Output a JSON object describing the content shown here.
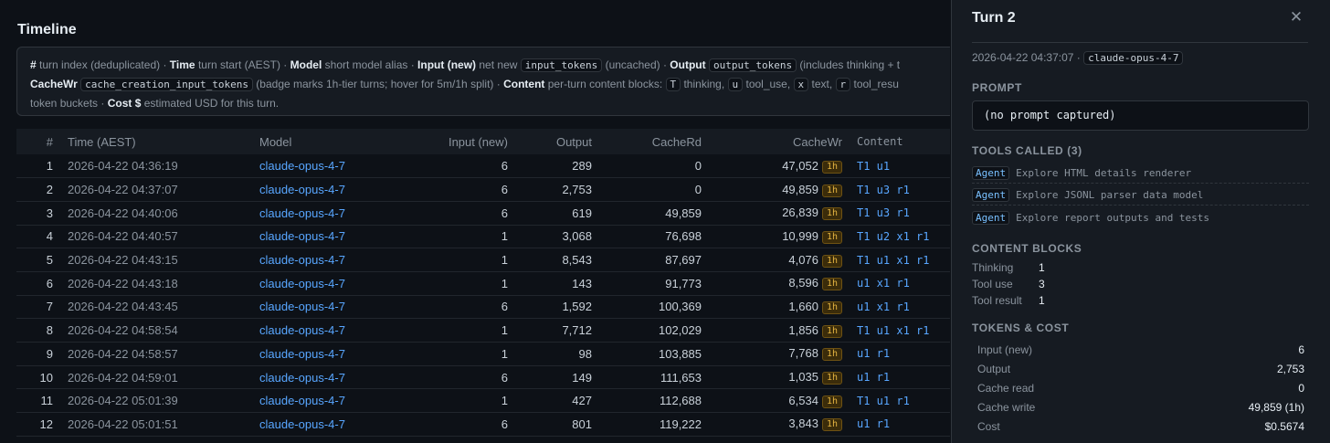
{
  "main": {
    "title": "Timeline",
    "legend": {
      "hash_key": "#",
      "hash_desc": "turn index (deduplicated) ·",
      "time_key": "Time",
      "time_desc": "turn start (AEST) ·",
      "model_key": "Model",
      "model_desc": "short model alias ·",
      "input_key": "Input (new)",
      "input_pre": "net new",
      "input_code": "input_tokens",
      "input_post": "(uncached) ·",
      "output_key": "Output",
      "output_code": "output_tokens",
      "output_post": "(includes thinking + t",
      "cachewr_key": "CacheWr",
      "cachewr_code": "cache_creation_input_tokens",
      "cachewr_post": "(badge marks 1h-tier turns; hover for 5m/1h split) ·",
      "content_key": "Content",
      "content_pre": "per-turn content blocks:",
      "c_t": "T",
      "c_t_desc": "thinking,",
      "c_u": "u",
      "c_u_desc": "tool_use,",
      "c_x": "x",
      "c_x_desc": "text,",
      "c_r": "r",
      "c_r_desc": "tool_resu",
      "line3_pre": "token buckets ·",
      "cost_key": "Cost $",
      "cost_desc": "estimated USD for this turn."
    },
    "columns": [
      "#",
      "Time (AEST)",
      "Model",
      "Input (new)",
      "Output",
      "CacheRd",
      "CacheWr",
      "Content"
    ],
    "rows": [
      {
        "idx": "1",
        "time": "2026-04-22 04:36:19",
        "model": "claude-opus-4-7",
        "input": "6",
        "output": "289",
        "cache_rd": "0",
        "cache_wr": "47,052",
        "badge": "1h",
        "content": "T1 u1"
      },
      {
        "idx": "2",
        "time": "2026-04-22 04:37:07",
        "model": "claude-opus-4-7",
        "input": "6",
        "output": "2,753",
        "cache_rd": "0",
        "cache_wr": "49,859",
        "badge": "1h",
        "content": "T1 u3 r1"
      },
      {
        "idx": "3",
        "time": "2026-04-22 04:40:06",
        "model": "claude-opus-4-7",
        "input": "6",
        "output": "619",
        "cache_rd": "49,859",
        "cache_wr": "26,839",
        "badge": "1h",
        "content": "T1 u3 r1"
      },
      {
        "idx": "4",
        "time": "2026-04-22 04:40:57",
        "model": "claude-opus-4-7",
        "input": "1",
        "output": "3,068",
        "cache_rd": "76,698",
        "cache_wr": "10,999",
        "badge": "1h",
        "content": "T1 u2 x1 r1"
      },
      {
        "idx": "5",
        "time": "2026-04-22 04:43:15",
        "model": "claude-opus-4-7",
        "input": "1",
        "output": "8,543",
        "cache_rd": "87,697",
        "cache_wr": "4,076",
        "badge": "1h",
        "content": "T1 u1 x1 r1"
      },
      {
        "idx": "6",
        "time": "2026-04-22 04:43:18",
        "model": "claude-opus-4-7",
        "input": "1",
        "output": "143",
        "cache_rd": "91,773",
        "cache_wr": "8,596",
        "badge": "1h",
        "content": "u1 x1 r1"
      },
      {
        "idx": "7",
        "time": "2026-04-22 04:43:45",
        "model": "claude-opus-4-7",
        "input": "6",
        "output": "1,592",
        "cache_rd": "100,369",
        "cache_wr": "1,660",
        "badge": "1h",
        "content": "u1 x1 r1"
      },
      {
        "idx": "8",
        "time": "2026-04-22 04:58:54",
        "model": "claude-opus-4-7",
        "input": "1",
        "output": "7,712",
        "cache_rd": "102,029",
        "cache_wr": "1,856",
        "badge": "1h",
        "content": "T1 u1 x1 r1"
      },
      {
        "idx": "9",
        "time": "2026-04-22 04:58:57",
        "model": "claude-opus-4-7",
        "input": "1",
        "output": "98",
        "cache_rd": "103,885",
        "cache_wr": "7,768",
        "badge": "1h",
        "content": "u1 r1"
      },
      {
        "idx": "10",
        "time": "2026-04-22 04:59:01",
        "model": "claude-opus-4-7",
        "input": "6",
        "output": "149",
        "cache_rd": "111,653",
        "cache_wr": "1,035",
        "badge": "1h",
        "content": "u1 r1"
      },
      {
        "idx": "11",
        "time": "2026-04-22 05:01:39",
        "model": "claude-opus-4-7",
        "input": "1",
        "output": "427",
        "cache_rd": "112,688",
        "cache_wr": "6,534",
        "badge": "1h",
        "content": "T1 u1 r1"
      },
      {
        "idx": "12",
        "time": "2026-04-22 05:01:51",
        "model": "claude-opus-4-7",
        "input": "6",
        "output": "801",
        "cache_rd": "119,222",
        "cache_wr": "3,843",
        "badge": "1h",
        "content": "u1 r1"
      }
    ]
  },
  "panel": {
    "title": "Turn 2",
    "close_glyph": "✕",
    "timestamp": "2026-04-22 04:37:07 ·",
    "model": "claude-opus-4-7",
    "prompt_heading": "PROMPT",
    "prompt_text": "(no prompt captured)",
    "tools_heading": "TOOLS CALLED (3)",
    "tools": [
      {
        "tag": "Agent",
        "desc": "Explore HTML details renderer"
      },
      {
        "tag": "Agent",
        "desc": "Explore JSONL parser data model"
      },
      {
        "tag": "Agent",
        "desc": "Explore report outputs and tests"
      }
    ],
    "blocks_heading": "CONTENT BLOCKS",
    "blocks": [
      {
        "label": "Thinking",
        "value": "1"
      },
      {
        "label": "Tool use",
        "value": "3"
      },
      {
        "label": "Tool result",
        "value": "1"
      }
    ],
    "tokens_heading": "TOKENS & COST",
    "tokens": [
      {
        "label": "Input (new)",
        "value": "6"
      },
      {
        "label": "Output",
        "value": "2,753"
      },
      {
        "label": "Cache read",
        "value": "0"
      },
      {
        "label": "Cache write",
        "value": "49,859 (1h)"
      },
      {
        "label": "Cost",
        "value": "$0.5674"
      }
    ]
  }
}
